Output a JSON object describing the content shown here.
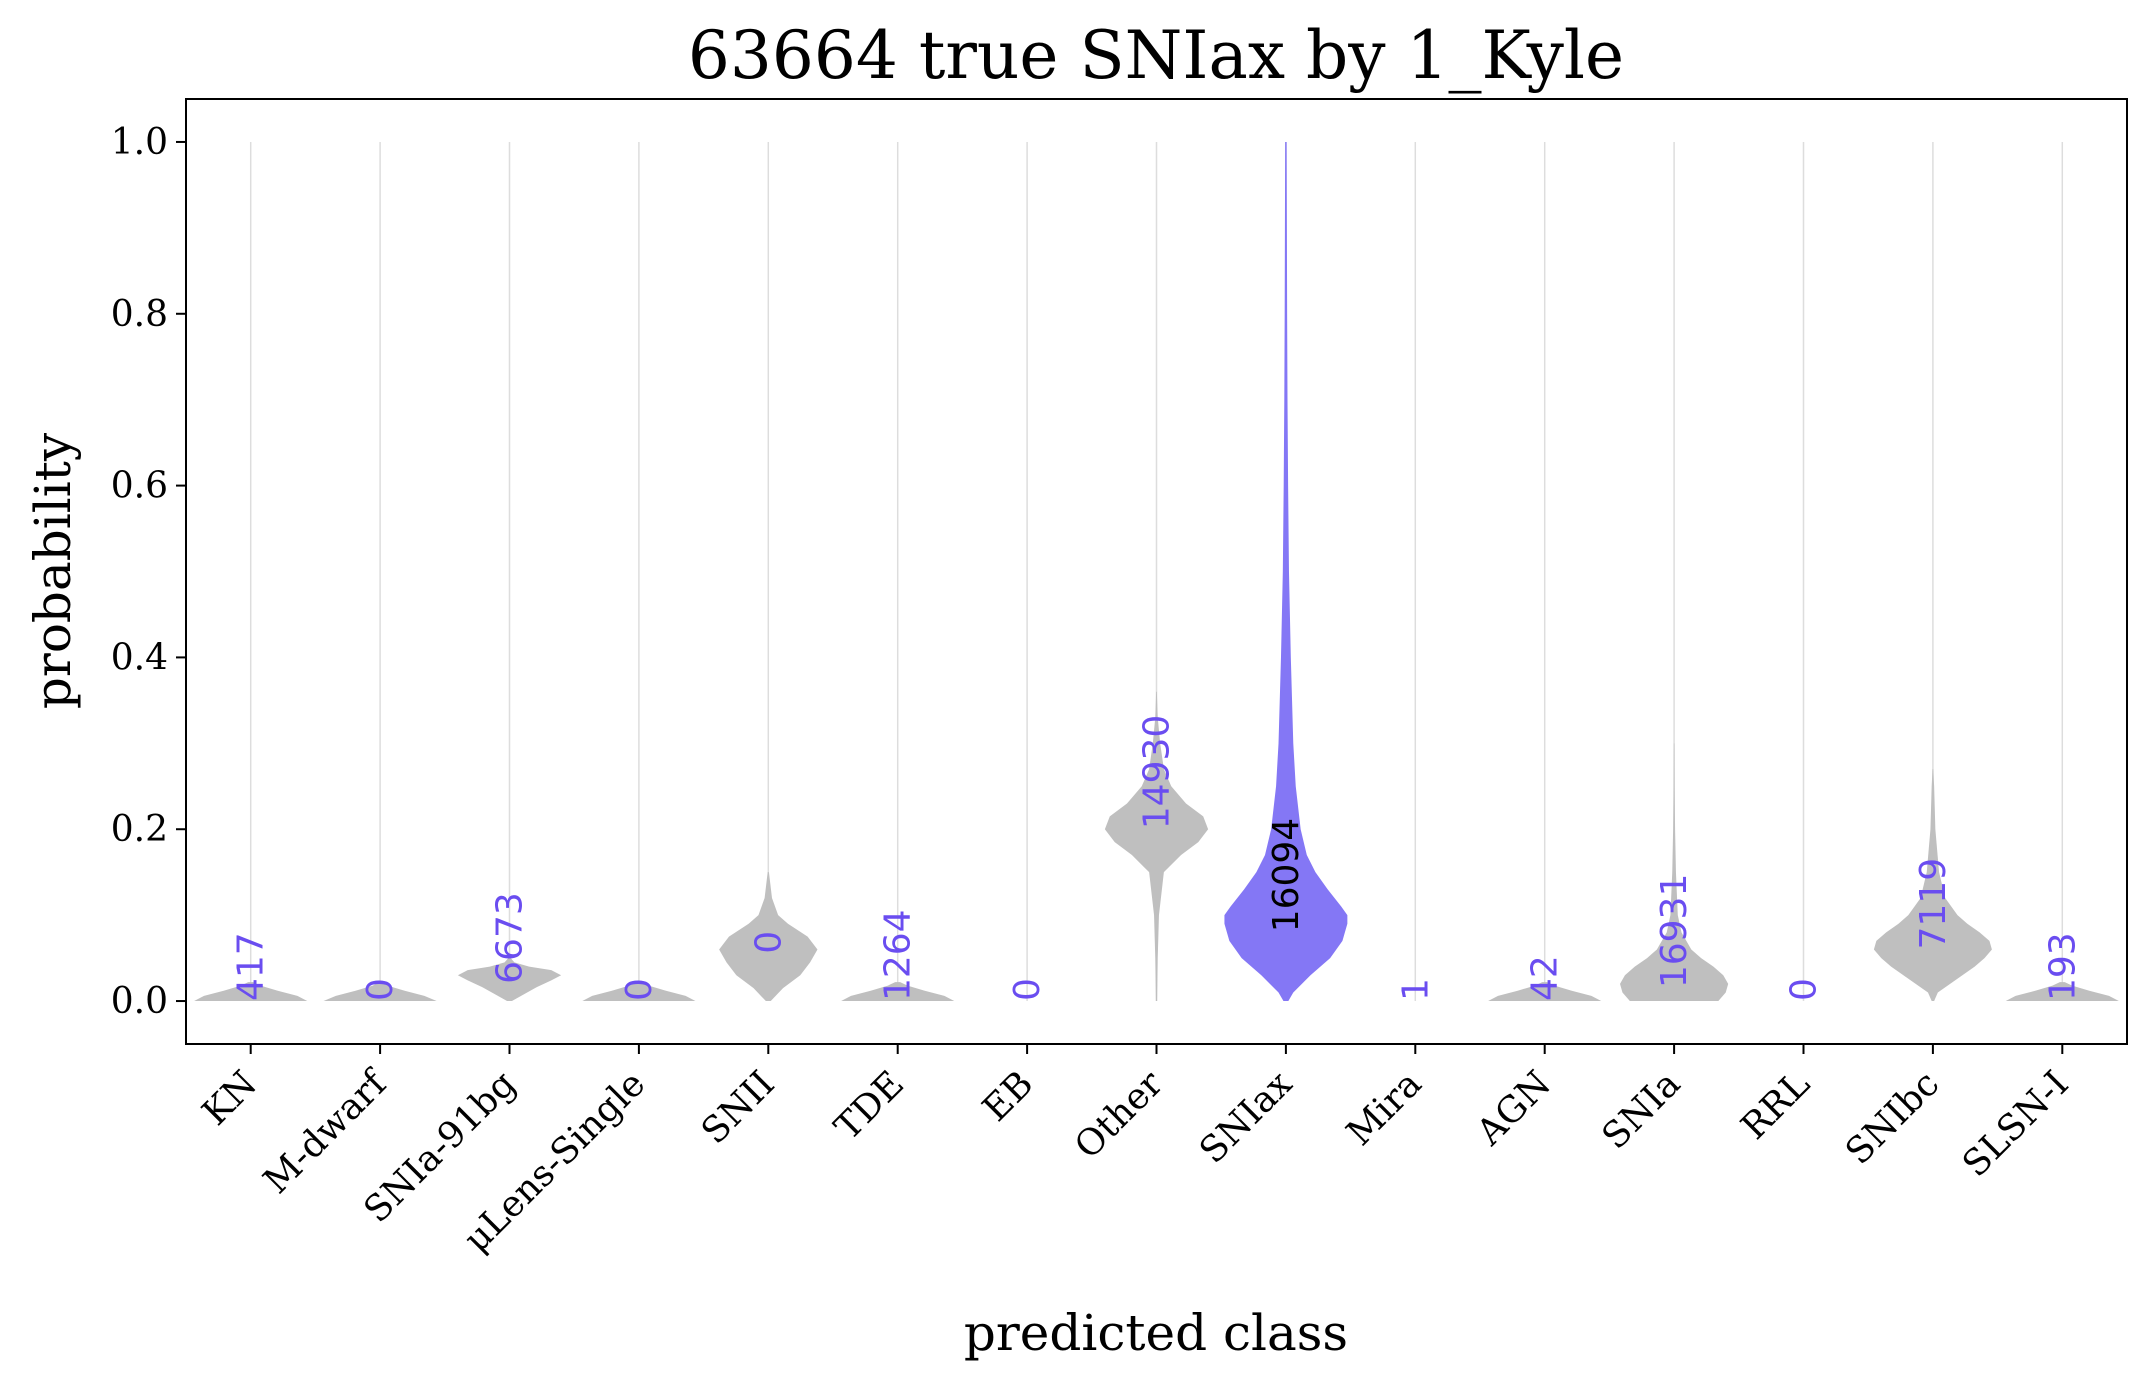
{
  "chart_data": {
    "type": "violin",
    "title": "63664 true SNIax by 1_Kyle",
    "xlabel": "predicted class",
    "ylabel": "probability",
    "ylim": [
      -0.05,
      1.05
    ],
    "yticks": [
      "0.0",
      "0.2",
      "0.4",
      "0.6",
      "0.8",
      "1.0"
    ],
    "ytick_values": [
      0.0,
      0.2,
      0.4,
      0.6,
      0.8,
      1.0
    ],
    "grid": "vertical lines at each class",
    "highlight_class": "SNIax",
    "colors": {
      "violin": "#bfbfbf",
      "highlight": "#8477f5",
      "count_text": "#6a4df0",
      "highlight_text": "#000000",
      "grid": "#dddddd"
    },
    "classes": [
      {
        "name": "KN",
        "count": "417",
        "profile": [
          [
            0.0,
            0.46
          ],
          [
            0.006,
            0.38
          ],
          [
            0.012,
            0.22
          ],
          [
            0.018,
            0.08
          ],
          [
            0.022,
            0.02
          ]
        ]
      },
      {
        "name": "M-dwarf",
        "count": "0",
        "profile": [
          [
            0.0,
            0.46
          ],
          [
            0.006,
            0.36
          ],
          [
            0.012,
            0.2
          ],
          [
            0.018,
            0.06
          ],
          [
            0.022,
            0.01
          ]
        ]
      },
      {
        "name": "SNIa-91bg",
        "count": "6673",
        "profile": [
          [
            0.0,
            0.02
          ],
          [
            0.008,
            0.12
          ],
          [
            0.016,
            0.22
          ],
          [
            0.024,
            0.34
          ],
          [
            0.03,
            0.42
          ],
          [
            0.036,
            0.34
          ],
          [
            0.04,
            0.16
          ],
          [
            0.045,
            0.04
          ],
          [
            0.05,
            0.01
          ]
        ]
      },
      {
        "name": "μLens-Single",
        "count": "0",
        "profile": [
          [
            0.0,
            0.46
          ],
          [
            0.006,
            0.38
          ],
          [
            0.012,
            0.22
          ],
          [
            0.018,
            0.08
          ],
          [
            0.022,
            0.02
          ]
        ]
      },
      {
        "name": "SNII",
        "count": "0",
        "profile": [
          [
            0.0,
            0.02
          ],
          [
            0.015,
            0.12
          ],
          [
            0.03,
            0.26
          ],
          [
            0.045,
            0.34
          ],
          [
            0.06,
            0.4
          ],
          [
            0.075,
            0.32
          ],
          [
            0.09,
            0.16
          ],
          [
            0.1,
            0.08
          ],
          [
            0.12,
            0.03
          ],
          [
            0.15,
            0.005
          ]
        ]
      },
      {
        "name": "TDE",
        "count": "1264",
        "profile": [
          [
            0.0,
            0.46
          ],
          [
            0.006,
            0.38
          ],
          [
            0.012,
            0.22
          ],
          [
            0.018,
            0.08
          ],
          [
            0.022,
            0.02
          ]
        ]
      },
      {
        "name": "EB",
        "count": "0",
        "profile": []
      },
      {
        "name": "Other",
        "count": "14930",
        "profile": [
          [
            0.0,
            0.005
          ],
          [
            0.05,
            0.01
          ],
          [
            0.1,
            0.02
          ],
          [
            0.15,
            0.06
          ],
          [
            0.17,
            0.2
          ],
          [
            0.185,
            0.34
          ],
          [
            0.2,
            0.42
          ],
          [
            0.215,
            0.38
          ],
          [
            0.23,
            0.24
          ],
          [
            0.25,
            0.12
          ],
          [
            0.27,
            0.06
          ],
          [
            0.3,
            0.03
          ],
          [
            0.33,
            0.01
          ],
          [
            0.36,
            0.003
          ]
        ]
      },
      {
        "name": "SNIax",
        "count": "16094",
        "profile": [
          [
            0.0,
            0.02
          ],
          [
            0.01,
            0.06
          ],
          [
            0.03,
            0.2
          ],
          [
            0.05,
            0.36
          ],
          [
            0.07,
            0.46
          ],
          [
            0.09,
            0.5
          ],
          [
            0.1,
            0.5
          ],
          [
            0.11,
            0.45
          ],
          [
            0.13,
            0.34
          ],
          [
            0.15,
            0.24
          ],
          [
            0.17,
            0.17
          ],
          [
            0.2,
            0.12
          ],
          [
            0.25,
            0.08
          ],
          [
            0.3,
            0.06
          ],
          [
            0.35,
            0.05
          ],
          [
            0.4,
            0.04
          ],
          [
            0.5,
            0.025
          ],
          [
            0.6,
            0.018
          ],
          [
            0.7,
            0.013
          ],
          [
            0.8,
            0.01
          ],
          [
            0.9,
            0.008
          ],
          [
            1.0,
            0.006
          ]
        ]
      },
      {
        "name": "Mira",
        "count": "1",
        "profile": []
      },
      {
        "name": "AGN",
        "count": "42",
        "profile": [
          [
            0.0,
            0.46
          ],
          [
            0.006,
            0.38
          ],
          [
            0.012,
            0.22
          ],
          [
            0.018,
            0.08
          ],
          [
            0.022,
            0.02
          ]
        ]
      },
      {
        "name": "SNIa",
        "count": "16931",
        "profile": [
          [
            0.0,
            0.36
          ],
          [
            0.01,
            0.42
          ],
          [
            0.02,
            0.44
          ],
          [
            0.03,
            0.4
          ],
          [
            0.04,
            0.32
          ],
          [
            0.05,
            0.22
          ],
          [
            0.06,
            0.14
          ],
          [
            0.08,
            0.06
          ],
          [
            0.1,
            0.03
          ],
          [
            0.15,
            0.015
          ],
          [
            0.2,
            0.008
          ],
          [
            0.25,
            0.004
          ],
          [
            0.3,
            0.002
          ]
        ]
      },
      {
        "name": "RRL",
        "count": "0",
        "profile": []
      },
      {
        "name": "SNIbc",
        "count": "7119",
        "profile": [
          [
            0.0,
            0.01
          ],
          [
            0.01,
            0.04
          ],
          [
            0.02,
            0.14
          ],
          [
            0.03,
            0.24
          ],
          [
            0.04,
            0.34
          ],
          [
            0.05,
            0.42
          ],
          [
            0.06,
            0.48
          ],
          [
            0.07,
            0.46
          ],
          [
            0.08,
            0.38
          ],
          [
            0.09,
            0.28
          ],
          [
            0.1,
            0.2
          ],
          [
            0.12,
            0.1
          ],
          [
            0.15,
            0.05
          ],
          [
            0.2,
            0.02
          ],
          [
            0.25,
            0.01
          ],
          [
            0.27,
            0.003
          ]
        ]
      },
      {
        "name": "SLSN-I",
        "count": "193",
        "profile": [
          [
            0.0,
            0.46
          ],
          [
            0.006,
            0.38
          ],
          [
            0.012,
            0.22
          ],
          [
            0.018,
            0.08
          ],
          [
            0.022,
            0.02
          ]
        ]
      }
    ]
  }
}
